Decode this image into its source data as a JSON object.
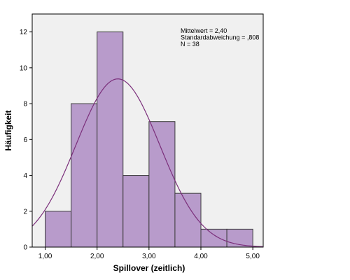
{
  "chart_data": {
    "type": "bar",
    "subtype": "histogram",
    "xlabel": "Spillover (zeitlich)",
    "ylabel": "Häufigkeit",
    "bins": [
      {
        "start": 1.0,
        "end": 1.5,
        "count": 2
      },
      {
        "start": 1.5,
        "end": 2.0,
        "count": 8
      },
      {
        "start": 2.0,
        "end": 2.5,
        "count": 12
      },
      {
        "start": 2.5,
        "end": 3.0,
        "count": 4
      },
      {
        "start": 3.0,
        "end": 3.5,
        "count": 7
      },
      {
        "start": 3.5,
        "end": 4.0,
        "count": 3
      },
      {
        "start": 4.0,
        "end": 4.5,
        "count": 1
      },
      {
        "start": 4.5,
        "end": 5.0,
        "count": 1
      }
    ],
    "xlim": [
      0.75,
      5.2
    ],
    "ylim": [
      0,
      13
    ],
    "x_ticks": [
      1.0,
      2.0,
      3.0,
      4.0,
      5.0
    ],
    "x_tick_labels": [
      "1,00",
      "2,00",
      "3,00",
      "4,00",
      "5,00"
    ],
    "y_ticks": [
      0,
      2,
      4,
      6,
      8,
      10,
      12
    ],
    "y_tick_labels": [
      "0",
      "2",
      "4",
      "6",
      "8",
      "10",
      "12"
    ],
    "normal_curve": {
      "mean": 2.4,
      "sd": 0.808,
      "n": 38,
      "bin_width": 0.5
    },
    "stats_lines": [
      "Mittelwert = 2,40",
      "Standardabweichung = ,808",
      "N = 38"
    ],
    "grid": false,
    "colors": {
      "bar_fill": "#B89BCB",
      "bar_stroke": "#3B3B3B",
      "curve": "#7B2F7B",
      "plot_background": "#F0F0F0"
    }
  }
}
